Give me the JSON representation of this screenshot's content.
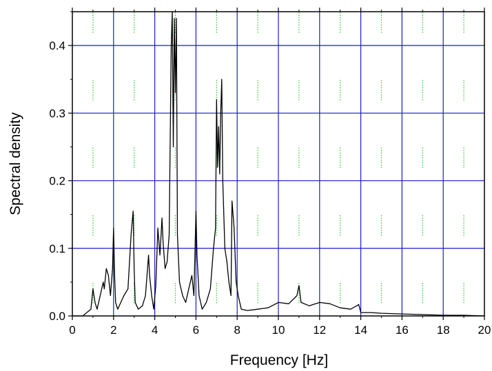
{
  "chart_data": {
    "type": "line",
    "title": "",
    "xlabel": "Frequency [Hz]",
    "ylabel": "Spectral density",
    "xlim": [
      0,
      20
    ],
    "ylim": [
      0,
      0.45
    ],
    "x_ticks": [
      0,
      2,
      4,
      6,
      8,
      10,
      12,
      14,
      16,
      18,
      20
    ],
    "x_tick_labels": [
      "0",
      "2",
      "4",
      "6",
      "8",
      "10",
      "12",
      "14",
      "16",
      "18",
      "20"
    ],
    "y_ticks": [
      0.0,
      0.1,
      0.2,
      0.3,
      0.4
    ],
    "y_tick_labels": [
      "0.0",
      "0.1",
      "0.2",
      "0.3",
      "0.4"
    ],
    "grid": true,
    "legend": "none",
    "colors": {
      "series": "#000000",
      "major_grid": "#1a1acc",
      "minor_marks": "#22cc22",
      "axes": "#000000"
    },
    "series": [
      {
        "x": [
          0,
          0.5,
          0.9,
          1.0,
          1.1,
          1.2,
          1.35,
          1.5,
          1.55,
          1.65,
          1.75,
          1.85,
          1.95,
          2.0,
          2.05,
          2.1,
          2.2,
          2.35,
          2.5,
          2.7,
          2.85,
          2.95,
          3.0,
          3.05,
          3.2,
          3.4,
          3.55,
          3.7,
          3.75,
          3.85,
          3.95,
          4.05,
          4.15,
          4.25,
          4.35,
          4.4,
          4.5,
          4.6,
          4.7,
          4.8,
          4.85,
          4.9,
          4.95,
          5.0,
          5.05,
          5.1,
          5.2,
          5.35,
          5.5,
          5.65,
          5.8,
          5.9,
          6.0,
          6.05,
          6.15,
          6.3,
          6.5,
          6.7,
          6.85,
          6.95,
          7.0,
          7.05,
          7.1,
          7.15,
          7.2,
          7.25,
          7.3,
          7.4,
          7.5,
          7.6,
          7.7,
          7.75,
          7.85,
          7.95,
          8.05,
          8.2,
          8.5,
          9.0,
          9.5,
          10.0,
          10.5,
          10.9,
          11.0,
          11.1,
          11.5,
          12.0,
          12.5,
          13.0,
          13.5,
          13.8,
          13.9,
          14.0,
          14.5,
          15.0,
          16.0,
          17.0,
          18.0,
          19.0,
          20.0
        ],
        "y": [
          0,
          0,
          0.01,
          0.04,
          0.02,
          0.01,
          0.03,
          0.05,
          0.04,
          0.07,
          0.06,
          0.03,
          0.07,
          0.13,
          0.06,
          0.02,
          0.01,
          0.02,
          0.03,
          0.04,
          0.12,
          0.155,
          0.07,
          0.02,
          0.01,
          0.015,
          0.03,
          0.09,
          0.06,
          0.03,
          0.01,
          0.045,
          0.13,
          0.09,
          0.145,
          0.11,
          0.07,
          0.08,
          0.12,
          0.4,
          0.45,
          0.25,
          0.44,
          0.33,
          0.44,
          0.12,
          0.05,
          0.03,
          0.02,
          0.04,
          0.06,
          0.03,
          0.155,
          0.09,
          0.03,
          0.01,
          0.02,
          0.04,
          0.1,
          0.13,
          0.32,
          0.22,
          0.28,
          0.21,
          0.3,
          0.35,
          0.2,
          0.1,
          0.08,
          0.05,
          0.03,
          0.17,
          0.13,
          0.05,
          0.03,
          0.01,
          0.008,
          0.01,
          0.012,
          0.02,
          0.018,
          0.03,
          0.045,
          0.02,
          0.015,
          0.02,
          0.018,
          0.012,
          0.01,
          0.015,
          0.017,
          0.005,
          0.005,
          0.004,
          0.003,
          0.002,
          0.001,
          0.001,
          0
        ]
      }
    ]
  }
}
